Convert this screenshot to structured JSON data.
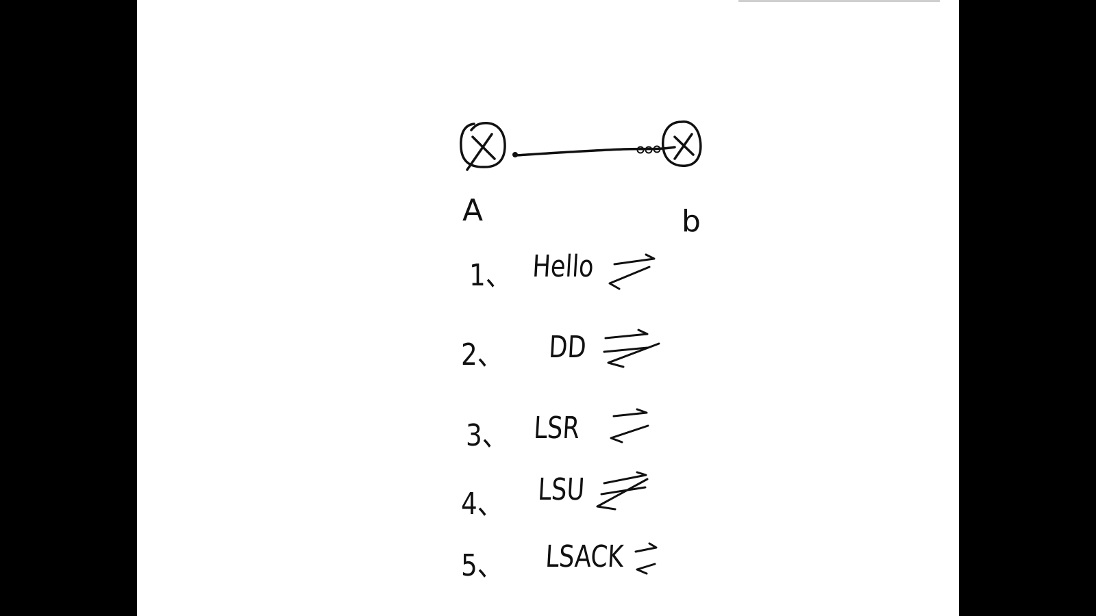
{
  "diagram": {
    "routers": [
      {
        "label": "A"
      },
      {
        "label": "b"
      }
    ],
    "steps": [
      {
        "number": "1、",
        "message": "Hello"
      },
      {
        "number": "2、",
        "message": "DD"
      },
      {
        "number": "3、",
        "message": "LSR"
      },
      {
        "number": "4、",
        "message": "LSU"
      },
      {
        "number": "5、",
        "message": "LSACK"
      }
    ]
  }
}
